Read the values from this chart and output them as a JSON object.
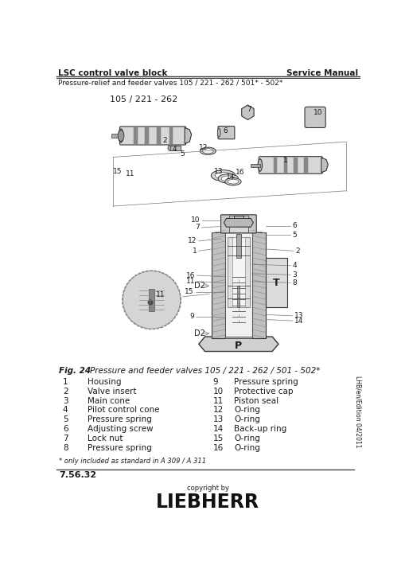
{
  "title_left": "LSC control valve block",
  "title_right": "Service Manual",
  "subtitle": "Pressure-relief and feeder valves 105 / 221 - 262 / 501* - 502*",
  "fig_label": "Fig. 24",
  "fig_caption": "Pressure and feeder valves 105 / 221 - 262 / 501 - 502*",
  "diagram_label_top": "105 / 221 - 262",
  "parts_left": [
    [
      "1",
      "Housing"
    ],
    [
      "2",
      "Valve insert"
    ],
    [
      "3",
      "Main cone"
    ],
    [
      "4",
      "Pilot control cone"
    ],
    [
      "5",
      "Pressure spring"
    ],
    [
      "6",
      "Adjusting screw"
    ],
    [
      "7",
      "Lock nut"
    ],
    [
      "8",
      "Pressure spring"
    ]
  ],
  "parts_right": [
    [
      "9",
      "Pressure spring"
    ],
    [
      "10",
      "Protective cap"
    ],
    [
      "11",
      "Piston seal"
    ],
    [
      "12",
      "O-ring"
    ],
    [
      "13",
      "O-ring"
    ],
    [
      "14",
      "Back-up ring"
    ],
    [
      "15",
      "O-ring"
    ],
    [
      "16",
      "O-ring"
    ]
  ],
  "footnote": "* only included as standard in A 309 / A 311",
  "page_number": "7.56.32",
  "edition_text": "LHB/en/Edition 04/2011",
  "bg_color": "#ffffff",
  "text_color": "#1a1a1a",
  "dark_color": "#333333",
  "mid_color": "#777777",
  "light_color": "#cccccc",
  "lighter_color": "#e8e8e8"
}
